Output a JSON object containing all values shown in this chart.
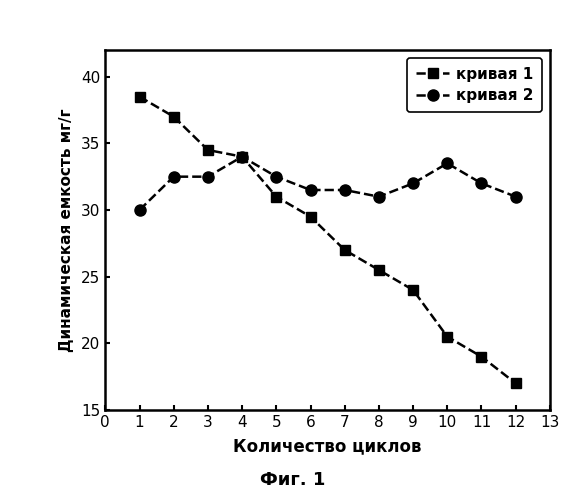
{
  "curve1_x": [
    1,
    2,
    3,
    4,
    5,
    6,
    7,
    8,
    9,
    10,
    11,
    12
  ],
  "curve1_y": [
    38.5,
    37.0,
    34.5,
    34.0,
    31.0,
    29.5,
    27.0,
    25.5,
    24.0,
    20.5,
    19.0,
    17.0
  ],
  "curve2_x": [
    1,
    2,
    3,
    4,
    5,
    6,
    7,
    8,
    9,
    10,
    11,
    12
  ],
  "curve2_y": [
    30.0,
    32.5,
    32.5,
    34.0,
    32.5,
    31.5,
    31.5,
    31.0,
    32.0,
    33.5,
    32.0,
    31.0
  ],
  "xlabel": "Количество циклов",
  "ylabel": "Динамическая емкость мг/г",
  "legend1": "кривая 1",
  "legend2": "кривая 2",
  "caption": "Фиг. 1",
  "xlim": [
    0,
    13
  ],
  "ylim": [
    15,
    42
  ],
  "xticks": [
    0,
    1,
    2,
    3,
    4,
    5,
    6,
    7,
    8,
    9,
    10,
    11,
    12,
    13
  ],
  "yticks": [
    15,
    20,
    25,
    30,
    35,
    40
  ],
  "line_color": "#000000",
  "background_color": "#ffffff"
}
